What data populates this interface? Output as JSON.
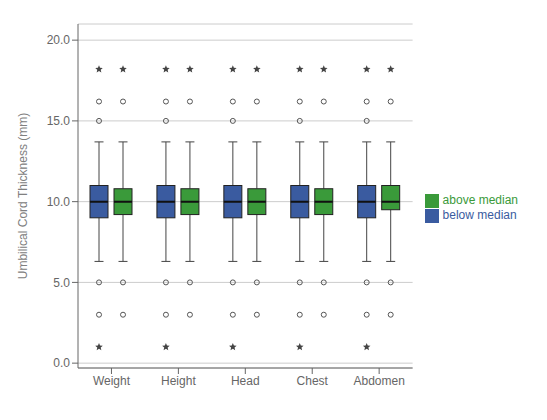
{
  "chart_data": {
    "type": "box",
    "ylabel": "Umbilical Cord Thickness (mm)",
    "categories": [
      "Weight",
      "Height",
      "Head",
      "Chest",
      "Abdomen"
    ],
    "series": [
      {
        "name": "below median",
        "color": "#3A5BA0",
        "values": [
          {
            "q1": 9.0,
            "median": 10.0,
            "q3": 11.0,
            "whislo": 6.3,
            "whishi": 13.7,
            "fliers_high": [
              15.0,
              16.2
            ],
            "fliers_low": [
              5.0,
              3.0
            ],
            "star_high": 18.2,
            "star_low": 1.0
          },
          {
            "q1": 9.0,
            "median": 10.0,
            "q3": 11.0,
            "whislo": 6.3,
            "whishi": 13.7,
            "fliers_high": [
              15.0,
              16.2
            ],
            "fliers_low": [
              5.0,
              3.0
            ],
            "star_high": 18.2,
            "star_low": 1.0
          },
          {
            "q1": 9.0,
            "median": 10.0,
            "q3": 11.0,
            "whislo": 6.3,
            "whishi": 13.7,
            "fliers_high": [
              15.0,
              16.2
            ],
            "fliers_low": [
              5.0,
              3.0
            ],
            "star_high": 18.2,
            "star_low": 1.0
          },
          {
            "q1": 9.0,
            "median": 10.0,
            "q3": 11.0,
            "whislo": 6.3,
            "whishi": 13.7,
            "fliers_high": [
              15.0,
              16.2
            ],
            "fliers_low": [
              5.0,
              3.0
            ],
            "star_high": 18.2,
            "star_low": 1.0
          },
          {
            "q1": 9.0,
            "median": 10.0,
            "q3": 11.0,
            "whislo": 6.3,
            "whishi": 13.7,
            "fliers_high": [
              15.0,
              16.2
            ],
            "fliers_low": [
              5.0,
              3.0
            ],
            "star_high": 18.2,
            "star_low": 1.0
          }
        ]
      },
      {
        "name": "above median",
        "color": "#3A9A3A",
        "values": [
          {
            "q1": 9.2,
            "median": 10.0,
            "q3": 10.8,
            "whislo": 6.3,
            "whishi": 13.7,
            "fliers_high": [
              16.2
            ],
            "fliers_low": [
              5.0,
              3.0
            ],
            "star_high": 18.2,
            "star_low": null
          },
          {
            "q1": 9.2,
            "median": 10.0,
            "q3": 10.8,
            "whislo": 6.3,
            "whishi": 13.7,
            "fliers_high": [
              16.2
            ],
            "fliers_low": [
              5.0,
              3.0
            ],
            "star_high": 18.2,
            "star_low": null
          },
          {
            "q1": 9.2,
            "median": 10.0,
            "q3": 10.8,
            "whislo": 6.3,
            "whishi": 13.7,
            "fliers_high": [
              16.2
            ],
            "fliers_low": [
              5.0,
              3.0
            ],
            "star_high": 18.2,
            "star_low": null
          },
          {
            "q1": 9.2,
            "median": 10.0,
            "q3": 10.8,
            "whislo": 6.3,
            "whishi": 13.7,
            "fliers_high": [
              16.2
            ],
            "fliers_low": [
              5.0,
              3.0
            ],
            "star_high": 18.2,
            "star_low": null
          },
          {
            "q1": 9.5,
            "median": 10.0,
            "q3": 11.0,
            "whislo": 6.3,
            "whishi": 13.7,
            "fliers_high": [
              16.2
            ],
            "fliers_low": [
              5.0,
              3.0
            ],
            "star_high": 18.2,
            "star_low": null
          }
        ]
      }
    ],
    "ylim": [
      -0.3,
      21.0
    ],
    "yticks": [
      {
        "value": 0.0,
        "label": "0.0"
      },
      {
        "value": 5.0,
        "label": "5.0"
      },
      {
        "value": 10.0,
        "label": "10.0"
      },
      {
        "value": 15.0,
        "label": "15.0"
      },
      {
        "value": 20.0,
        "label": "20.0"
      }
    ],
    "grid": true,
    "legend": "right"
  }
}
